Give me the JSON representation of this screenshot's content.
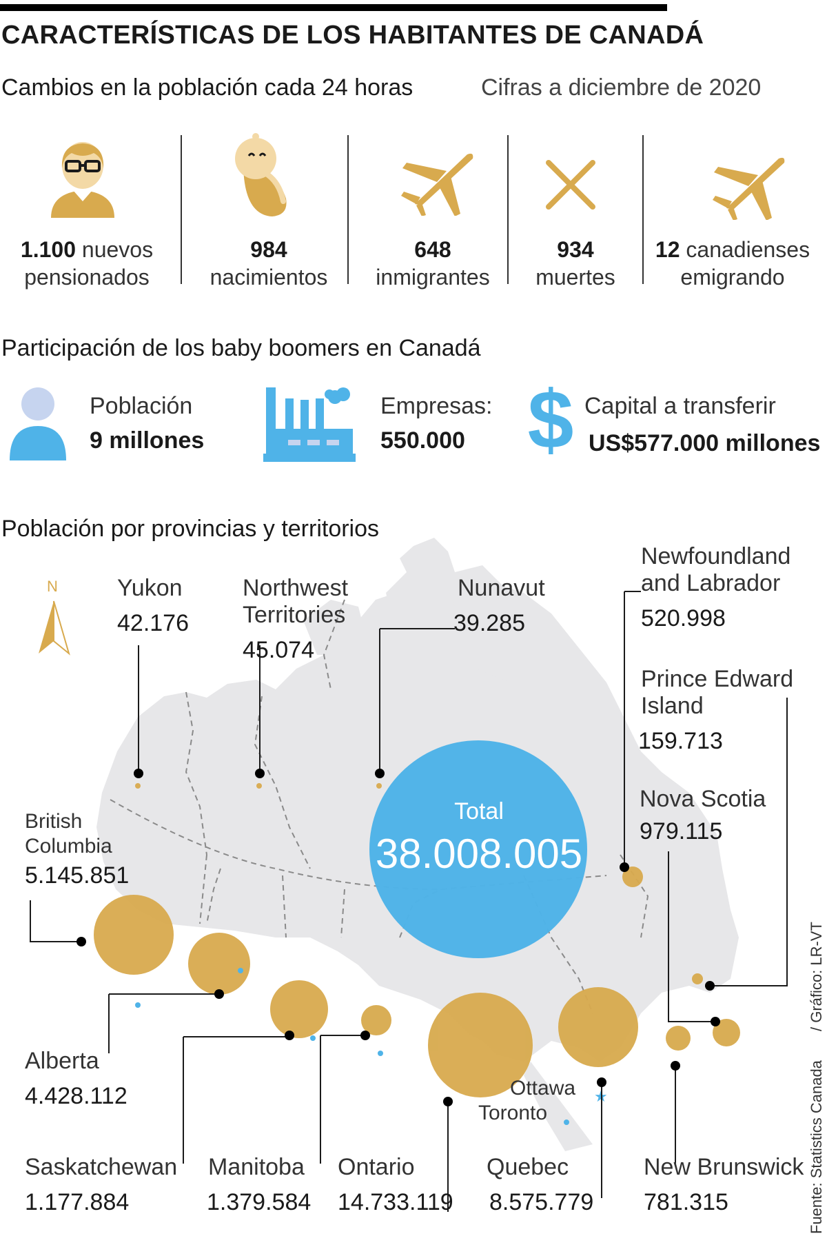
{
  "title": "CARACTERÍSTICAS DE LOS HABITANTES DE CANADÁ",
  "changes": {
    "heading": "Cambios en la población cada 24 horas",
    "date_note": "Cifras a diciembre de 2020",
    "items": [
      {
        "value": "1.100",
        "label_inline": "nuevos",
        "label_line2": "pensionados",
        "icon": "elderly-person-icon"
      },
      {
        "value": "984",
        "label_line2": "nacimientos",
        "icon": "baby-icon"
      },
      {
        "value": "648",
        "label_line2": "inmigrantes",
        "icon": "airplane-icon"
      },
      {
        "value": "934",
        "label_line2": "muertes",
        "icon": "cross-icon"
      },
      {
        "value": "12",
        "label_inline": "canadienses",
        "label_line2": "emigrando",
        "icon": "airplane-icon"
      }
    ]
  },
  "boomers": {
    "heading": "Participación de los baby boomers en Canadá",
    "population_label": "Población",
    "population_value": "9 millones",
    "companies_label": "Empresas:",
    "companies_value": "550.000",
    "capital_label": "Capital a transferir",
    "capital_value": "US$577.000 millones"
  },
  "provinces": {
    "heading": "Población por provincias y territorios",
    "north": "N",
    "total_label": "Total",
    "total_value": "38.008.005",
    "yukon": {
      "name": "Yukon",
      "value": "42.176"
    },
    "nwt": {
      "name1": "Northwest",
      "name2": "Territories",
      "value": "45.074"
    },
    "nunavut": {
      "name": "Nunavut",
      "value": "39.285"
    },
    "nl": {
      "name1": "Newfoundland",
      "name2": "and Labrador",
      "value": "520.998"
    },
    "pei": {
      "name1": "Prince Edward",
      "name2": "Island",
      "value": "159.713"
    },
    "ns": {
      "name": "Nova Scotia",
      "value": "979.115"
    },
    "bc": {
      "name1": "British",
      "name2": "Columbia",
      "value": "5.145.851"
    },
    "alberta": {
      "name": "Alberta",
      "value": "4.428.112"
    },
    "saskatchewan": {
      "name": "Saskatchewan",
      "value": "1.177.884"
    },
    "manitoba": {
      "name": "Manitoba",
      "value": "1.379.584"
    },
    "ontario": {
      "name": "Ontario",
      "value": "14.733.119"
    },
    "quebec": {
      "name": "Quebec",
      "value": "8.575.779"
    },
    "nb": {
      "name": "New Brunswick",
      "value": "781.315"
    },
    "ottawa": "Ottawa",
    "toronto": "Toronto"
  },
  "source": "Fuente: Statistics Canada",
  "credit": "/ Gráfico: LR-VT",
  "colors": {
    "gold": "#d8aa4e",
    "blue": "#4fb3e8",
    "land": "#e7e7e9",
    "icon_blue": "#4fb3e8"
  }
}
